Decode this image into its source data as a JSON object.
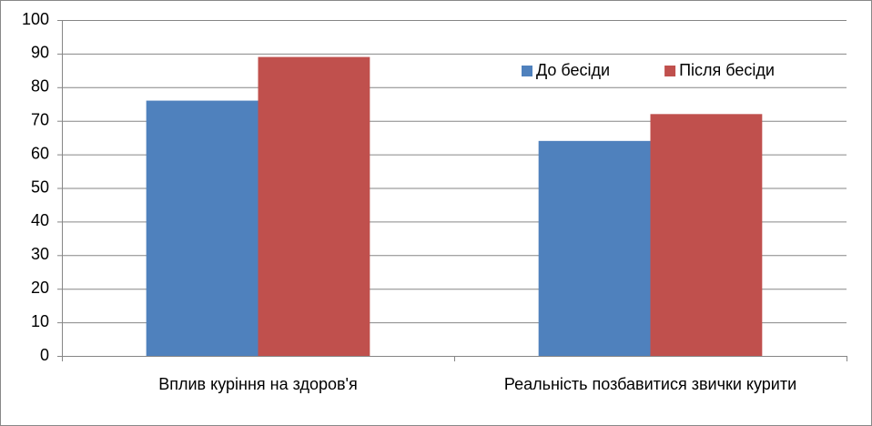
{
  "chart_data": {
    "type": "bar",
    "categories": [
      "Вплив куріння на здоров'я",
      "Реальність позбавитися звички курити"
    ],
    "series": [
      {
        "name": "До бесіди",
        "color": "#4f81bd",
        "values": [
          76,
          64
        ]
      },
      {
        "name": "Після бесіди",
        "color": "#c0504d",
        "values": [
          89,
          72
        ]
      }
    ],
    "ylim": [
      0,
      100
    ],
    "yticks": [
      0,
      10,
      20,
      30,
      40,
      50,
      60,
      70,
      80,
      90,
      100
    ],
    "grid": true,
    "legend": "upper right"
  }
}
